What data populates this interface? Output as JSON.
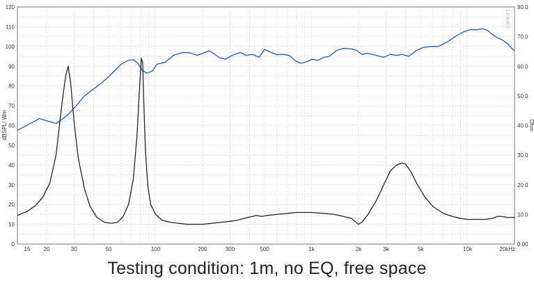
{
  "caption": "Testing condition: 1m, no EQ, free space",
  "chart_data": {
    "type": "line",
    "x_scale": "log",
    "xlim": [
      13,
      20000
    ],
    "ylim_left": [
      0,
      120
    ],
    "ylim_right": [
      0,
      80
    ],
    "ylabel_left": "dBSPL/ Wm",
    "ylabel_right": "Ohm",
    "watermark": "LinearX",
    "grid": true,
    "x_ticks": [
      {
        "value": 15,
        "label": "15"
      },
      {
        "value": 20,
        "label": "20"
      },
      {
        "value": 30,
        "label": "30"
      },
      {
        "value": 50,
        "label": "50"
      },
      {
        "value": 100,
        "label": "100"
      },
      {
        "value": 200,
        "label": "200"
      },
      {
        "value": 300,
        "label": "300"
      },
      {
        "value": 500,
        "label": "500"
      },
      {
        "value": 1000,
        "label": "1k"
      },
      {
        "value": 2000,
        "label": "2k"
      },
      {
        "value": 3000,
        "label": "3k"
      },
      {
        "value": 5000,
        "label": "5k"
      },
      {
        "value": 10000,
        "label": "10k"
      },
      {
        "value": 20000,
        "label": "20kHz"
      }
    ],
    "y_ticks_left": [
      0,
      10,
      20,
      30,
      40,
      50,
      60,
      70,
      80,
      90,
      100,
      110,
      120
    ],
    "y_ticks_right": [
      "0.00",
      "10.0",
      "20.0",
      "30.0",
      "40.0",
      "50.0",
      "60.0",
      "70.0",
      "80.0"
    ],
    "series": [
      {
        "axis": "left",
        "color": "#2b55a8",
        "x": [
          13,
          18,
          23,
          27,
          31,
          35,
          40,
          45,
          52,
          60,
          67,
          72,
          77,
          82,
          88,
          95,
          102,
          115,
          130,
          150,
          165,
          185,
          200,
          220,
          235,
          255,
          280,
          310,
          350,
          380,
          420,
          460,
          500,
          550,
          600,
          650,
          720,
          780,
          850,
          900,
          950,
          1000,
          1100,
          1200,
          1300,
          1450,
          1600,
          1800,
          1950,
          2100,
          2300,
          2600,
          2900,
          3200,
          3500,
          3800,
          4200,
          4700,
          5200,
          5800,
          6500,
          7500,
          8500,
          9500,
          10500,
          11500,
          12500,
          13500,
          14500,
          15500,
          16500,
          18000,
          19500,
          20000
        ],
        "y": [
          57.5,
          63.5,
          61,
          65,
          70,
          75,
          78.5,
          81.5,
          86,
          91,
          93,
          93.3,
          91.5,
          88,
          86.5,
          87.5,
          91,
          92,
          95.5,
          97,
          96.8,
          95.5,
          96.5,
          97.8,
          96.5,
          94.5,
          93.5,
          95.5,
          97,
          95.5,
          96,
          94.5,
          98.5,
          97,
          95.8,
          96,
          95.5,
          93,
          91.5,
          92,
          92.5,
          93.5,
          93,
          94.5,
          95,
          98,
          99,
          98.8,
          98,
          96,
          96.5,
          95.5,
          94.5,
          96,
          95.5,
          96,
          95,
          98,
          99.5,
          100,
          100,
          102.5,
          105.5,
          107.5,
          108.5,
          108.5,
          109,
          108,
          106,
          104.5,
          103.5,
          101.5,
          98.5,
          98
        ]
      },
      {
        "axis": "left",
        "color": "#222222",
        "x": [
          13,
          15,
          17,
          19,
          21,
          23,
          25,
          26.5,
          27.5,
          28.5,
          30,
          32,
          35,
          38,
          42,
          47,
          52,
          57,
          62,
          67,
          72,
          76,
          79,
          81,
          82.5,
          84,
          86,
          89,
          93,
          100,
          110,
          125,
          140,
          160,
          180,
          200,
          230,
          260,
          300,
          330,
          350,
          390,
          420,
          440,
          480,
          520,
          600,
          700,
          800,
          900,
          1000,
          1200,
          1400,
          1600,
          1800,
          2000,
          2100,
          2300,
          2600,
          2900,
          3200,
          3500,
          3800,
          4000,
          4300,
          4700,
          5300,
          6000,
          7000,
          8000,
          9000,
          10000,
          11500,
          13000,
          14500,
          15500,
          16500,
          18000,
          20000
        ],
        "y": [
          14.5,
          16.5,
          19.5,
          24,
          31,
          45,
          70,
          85,
          90,
          82,
          62,
          43,
          28,
          19,
          13.5,
          11,
          10.5,
          11,
          14,
          20,
          33,
          55,
          80,
          94,
          92,
          72,
          48,
          30,
          20,
          15,
          12,
          11,
          10.5,
          10,
          10,
          10,
          10.5,
          11,
          11.5,
          12,
          12.5,
          13.5,
          14,
          14.5,
          14,
          14.5,
          15,
          15.5,
          16,
          16,
          16,
          15.5,
          15,
          14,
          13,
          10,
          11,
          15,
          22,
          30,
          37,
          40,
          41,
          40.5,
          37,
          31,
          24,
          19,
          15.5,
          14,
          13,
          12.5,
          12.5,
          12.5,
          13,
          14,
          14,
          13.5,
          13.5
        ]
      }
    ]
  }
}
